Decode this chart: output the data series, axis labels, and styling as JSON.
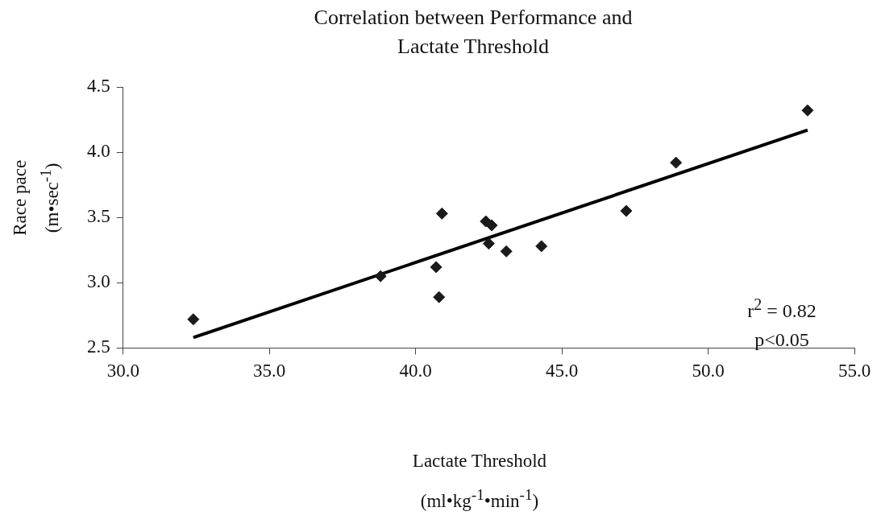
{
  "chart_data": {
    "type": "scatter",
    "title": "Correlation between Performance and Lactate Threshold",
    "xlabel": "Lactate Threshold (ml•kg$^{-1}$•min$^{-1}$)",
    "ylabel": "Race pace (m•sec$^{-1}$)",
    "x": [
      32.4,
      38.8,
      40.7,
      40.8,
      40.9,
      42.4,
      42.6,
      42.5,
      43.1,
      44.3,
      47.2,
      48.9,
      53.4
    ],
    "series": [
      {
        "type": "scatter",
        "color": "#1a1a1a",
        "marker": "diamond",
        "values": [
          2.72,
          3.05,
          3.12,
          2.89,
          3.53,
          3.47,
          3.44,
          3.3,
          3.24,
          3.28,
          3.55,
          3.92,
          4.32
        ]
      },
      {
        "type": "line",
        "color": "#000000",
        "marker": "none",
        "x": [
          32.4,
          53.4
        ],
        "values": [
          2.58,
          4.17
        ]
      }
    ],
    "xlim": [
      30,
      55
    ],
    "xticks": [
      {
        "value": 30,
        "label": "30.0"
      },
      {
        "value": 35,
        "label": "35.0"
      },
      {
        "value": 40,
        "label": "40.0"
      },
      {
        "value": 45,
        "label": "45.0"
      },
      {
        "value": 50,
        "label": "50.0"
      },
      {
        "value": 55,
        "label": "55.0"
      }
    ],
    "ylim": [
      2.5,
      4.5
    ],
    "yticks": [
      2.5,
      {
        "value": 3,
        "label": "3.0"
      },
      3.5,
      {
        "value": 4,
        "label": "4.0"
      },
      4.5
    ],
    "annotations": [
      "r$^{2}$ = 0.82",
      "p<0.05"
    ],
    "grid": false,
    "legend": false
  }
}
